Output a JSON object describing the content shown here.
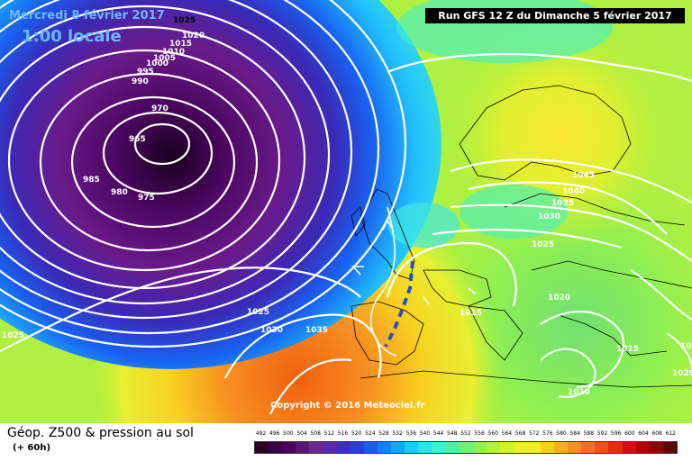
{
  "header": {
    "date": "Mercredi 8 février 2017",
    "time": "1:00 locale",
    "run": "Run GFS 12 Z du Dimanche 5 février 2017"
  },
  "copyright": "Copyright © 2016 Meteociel.fr",
  "footer": {
    "title": "Géop. Z500 & pression au sol",
    "subtitle": "(+ 60h)"
  },
  "scale": {
    "labels": [
      "492",
      "496",
      "500",
      "504",
      "508",
      "512",
      "516",
      "520",
      "524",
      "528",
      "532",
      "536",
      "540",
      "544",
      "548",
      "552",
      "556",
      "560",
      "564",
      "568",
      "572",
      "576",
      "580",
      "584",
      "588",
      "592",
      "596",
      "600",
      "604",
      "608",
      "612"
    ],
    "colors": [
      "#2a002a",
      "#3a0045",
      "#4b0060",
      "#5a1478",
      "#6a2890",
      "#5a2aa8",
      "#3c30c0",
      "#2a40d8",
      "#1a5cf0",
      "#1080ff",
      "#10a8ff",
      "#20c8ff",
      "#30e0f0",
      "#40f0d0",
      "#50f0a0",
      "#70f070",
      "#90f050",
      "#b0f040",
      "#d0f030",
      "#e8f030",
      "#f8e830",
      "#f8d020",
      "#f8b020",
      "#f89020",
      "#f87020",
      "#f05010",
      "#e03010",
      "#d01010",
      "#b00000",
      "#900000",
      "#600000"
    ]
  },
  "isobars": [
    "1025",
    "1020",
    "1015",
    "1010",
    "1005",
    "1000",
    "995",
    "990",
    "970",
    "965",
    "985",
    "980",
    "975",
    "1045",
    "1040",
    "1035",
    "1030",
    "1025",
    "1020",
    "1015",
    "1015",
    "1025",
    "1030",
    "1035",
    "1025",
    "1010",
    "1020",
    "1020"
  ]
}
